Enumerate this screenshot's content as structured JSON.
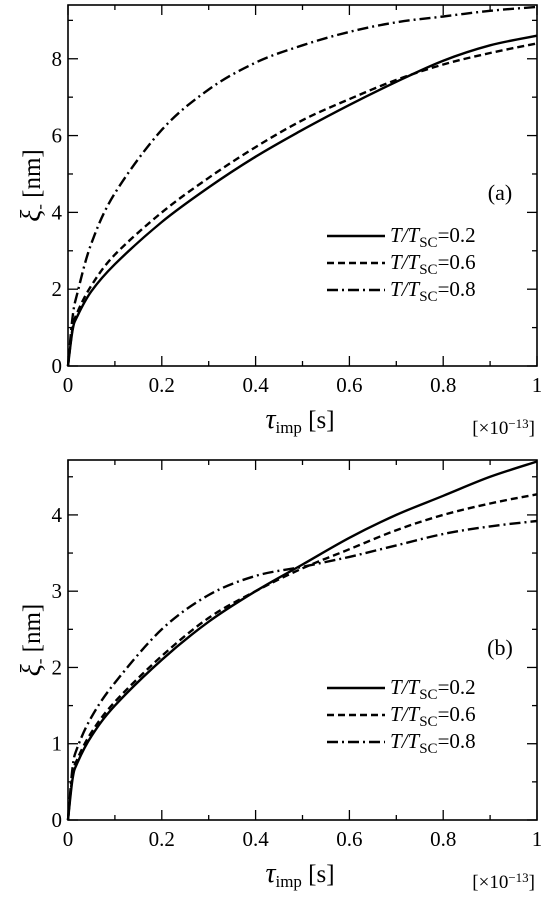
{
  "chart_data": [
    {
      "type": "line",
      "panel_label": "(a)",
      "xlabel": "τimp [s]",
      "xlabel_main": "τ",
      "xlabel_sub": "imp",
      "xlabel_unit": " [s]",
      "x_multiplier": "[×10",
      "x_multiplier_exp": "−13",
      "x_multiplier_close": "]",
      "ylabel": "ξ- [nm]",
      "ylabel_main": "ξ",
      "ylabel_sub": "-",
      "ylabel_unit": " [nm]",
      "xlim": [
        0,
        1
      ],
      "ylim": [
        0,
        9.4
      ],
      "xticks": [
        0,
        0.2,
        0.4,
        0.6,
        0.8,
        1
      ],
      "xtick_labels": [
        "0",
        "0.2",
        "0.4",
        "0.6",
        "0.8",
        "1"
      ],
      "xminor": [
        0.1,
        0.3,
        0.5,
        0.7,
        0.9
      ],
      "yticks": [
        0,
        2,
        4,
        6,
        8
      ],
      "ytick_labels": [
        "0",
        "2",
        "4",
        "6",
        "8"
      ],
      "yminor": [
        1,
        3,
        5,
        7,
        9
      ],
      "legend_position": "right",
      "series": [
        {
          "name": "T/TSC=0.2",
          "name_a": "T",
          "name_b": "/T",
          "name_sub": "SC",
          "name_val": "=0.2",
          "style": "solid",
          "x": [
            0,
            0.01,
            0.02,
            0.05,
            0.1,
            0.2,
            0.3,
            0.4,
            0.5,
            0.6,
            0.7,
            0.8,
            0.9,
            1.0
          ],
          "values": [
            0,
            0.95,
            1.3,
            1.95,
            2.65,
            3.75,
            4.65,
            5.45,
            6.15,
            6.8,
            7.4,
            7.95,
            8.35,
            8.6
          ]
        },
        {
          "name": "T/TSC=0.6",
          "name_a": "T",
          "name_b": "/T",
          "name_sub": "SC",
          "name_val": "=0.6",
          "style": "dashed",
          "x": [
            0,
            0.01,
            0.02,
            0.05,
            0.1,
            0.2,
            0.3,
            0.4,
            0.5,
            0.6,
            0.7,
            0.8,
            0.9,
            1.0
          ],
          "values": [
            0,
            1.0,
            1.4,
            2.1,
            2.9,
            4.0,
            4.9,
            5.7,
            6.4,
            6.95,
            7.45,
            7.85,
            8.15,
            8.4
          ]
        },
        {
          "name": "T/TSC=0.8",
          "name_a": "T",
          "name_b": "/T",
          "name_sub": "SC",
          "name_val": "=0.8",
          "style": "dashdot",
          "x": [
            0,
            0.01,
            0.02,
            0.05,
            0.1,
            0.2,
            0.3,
            0.4,
            0.5,
            0.6,
            0.7,
            0.8,
            0.9,
            1.0
          ],
          "values": [
            0,
            1.3,
            1.9,
            3.2,
            4.5,
            6.15,
            7.2,
            7.9,
            8.35,
            8.7,
            8.95,
            9.1,
            9.25,
            9.35
          ]
        }
      ]
    },
    {
      "type": "line",
      "panel_label": "(b)",
      "xlabel": "τimp [s]",
      "xlabel_main": "τ",
      "xlabel_sub": "imp",
      "xlabel_unit": " [s]",
      "x_multiplier": "[×10",
      "x_multiplier_exp": "−13",
      "x_multiplier_close": "]",
      "ylabel": "ξ- [nm]",
      "ylabel_main": "ξ",
      "ylabel_sub": "-",
      "ylabel_unit": " [nm]",
      "xlim": [
        0,
        1
      ],
      "ylim": [
        0,
        4.72
      ],
      "xticks": [
        0,
        0.2,
        0.4,
        0.6,
        0.8,
        1
      ],
      "xtick_labels": [
        "0",
        "0.2",
        "0.4",
        "0.6",
        "0.8",
        "1"
      ],
      "xminor": [
        0.1,
        0.3,
        0.5,
        0.7,
        0.9
      ],
      "yticks": [
        0,
        1,
        2,
        3,
        4
      ],
      "ytick_labels": [
        "0",
        "1",
        "2",
        "3",
        "4"
      ],
      "yminor": [
        0.5,
        1.5,
        2.5,
        3.5,
        4.5
      ],
      "legend_position": "right",
      "series": [
        {
          "name": "T/TSC=0.2",
          "name_a": "T",
          "name_b": "/T",
          "name_sub": "SC",
          "name_val": "=0.2",
          "style": "solid",
          "x": [
            0,
            0.01,
            0.02,
            0.05,
            0.1,
            0.2,
            0.3,
            0.4,
            0.5,
            0.6,
            0.7,
            0.8,
            0.9,
            1.0
          ],
          "values": [
            0,
            0.55,
            0.75,
            1.1,
            1.5,
            2.1,
            2.6,
            3.0,
            3.35,
            3.7,
            4.0,
            4.25,
            4.5,
            4.7
          ]
        },
        {
          "name": "T/TSC=0.6",
          "name_a": "T",
          "name_b": "/T",
          "name_sub": "SC",
          "name_val": "=0.6",
          "style": "dashed",
          "x": [
            0,
            0.01,
            0.02,
            0.05,
            0.1,
            0.2,
            0.3,
            0.4,
            0.5,
            0.6,
            0.7,
            0.8,
            0.9,
            1.0
          ],
          "values": [
            0,
            0.6,
            0.8,
            1.15,
            1.55,
            2.15,
            2.65,
            3.0,
            3.3,
            3.55,
            3.8,
            4.0,
            4.15,
            4.27
          ]
        },
        {
          "name": "T/TSC=0.8",
          "name_a": "T",
          "name_b": "/T",
          "name_sub": "SC",
          "name_val": "=0.8",
          "style": "dashdot",
          "x": [
            0,
            0.01,
            0.02,
            0.05,
            0.1,
            0.2,
            0.3,
            0.4,
            0.5,
            0.6,
            0.7,
            0.8,
            0.9,
            1.0
          ],
          "values": [
            0,
            0.7,
            0.95,
            1.35,
            1.8,
            2.5,
            2.95,
            3.2,
            3.32,
            3.45,
            3.6,
            3.75,
            3.85,
            3.92
          ]
        }
      ]
    }
  ]
}
